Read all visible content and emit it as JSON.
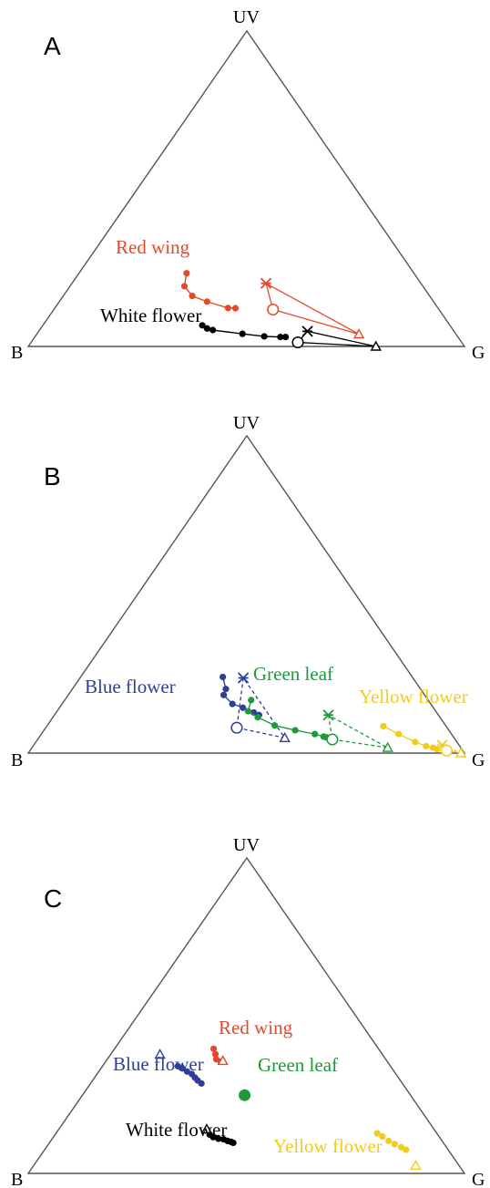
{
  "colors": {
    "black": "#000000",
    "red": "#e5492a",
    "blue": "#2f3f98",
    "green": "#1d9a3a",
    "yellow": "#f2cc1d",
    "triangle": "#555555"
  },
  "panels": [
    {
      "letter": "A",
      "vertices": {
        "uv": "UV",
        "b": "B",
        "g": "G"
      },
      "series": [
        {
          "label": "Red wing",
          "color_key": "red",
          "linestyle": "solid",
          "points": [
            [
              0.363,
              0.232
            ],
            [
              0.358,
              0.191
            ],
            [
              0.376,
              0.16
            ],
            [
              0.41,
              0.142
            ],
            [
              0.458,
              0.122
            ],
            [
              0.475,
              0.121
            ]
          ],
          "star": [
            0.545,
            0.2
          ],
          "circle": [
            0.561,
            0.117
          ],
          "triangle": [
            0.758,
            0.039
          ]
        },
        {
          "label": "White flower",
          "color_key": "black",
          "linestyle": "solid",
          "points": [
            [
              0.399,
              0.067
            ],
            [
              0.41,
              0.057
            ],
            [
              0.423,
              0.052
            ],
            [
              0.491,
              0.04
            ],
            [
              0.541,
              0.032
            ],
            [
              0.578,
              0.03
            ],
            [
              0.59,
              0.03
            ]
          ],
          "star": [
            0.64,
            0.048
          ],
          "circle": [
            0.618,
            0.013
          ],
          "triangle": [
            0.797,
            0.0
          ]
        }
      ]
    },
    {
      "letter": "B",
      "vertices": {
        "uv": "UV",
        "b": "B",
        "g": "G"
      },
      "series": [
        {
          "label": "Blue flower",
          "color_key": "blue",
          "linestyle": "dashed",
          "points": [
            [
              0.446,
              0.24
            ],
            [
              0.453,
              0.202
            ],
            [
              0.448,
              0.183
            ],
            [
              0.468,
              0.155
            ],
            [
              0.492,
              0.143
            ],
            [
              0.517,
              0.128
            ],
            [
              0.529,
              0.12
            ]
          ],
          "star": [
            0.493,
            0.237
          ],
          "circle": [
            0.478,
            0.08
          ],
          "triangle": [
            0.588,
            0.048
          ]
        },
        {
          "label": "Green leaf",
          "color_key": "green",
          "linestyle": "dashed",
          "points": [
            [
              0.511,
              0.167
            ],
            [
              0.504,
              0.132
            ],
            [
              0.526,
              0.113
            ],
            [
              0.565,
              0.087
            ],
            [
              0.612,
              0.072
            ],
            [
              0.657,
              0.06
            ],
            [
              0.677,
              0.052
            ],
            [
              0.683,
              0.05
            ]
          ],
          "star": [
            0.688,
            0.12
          ],
          "circle": [
            0.697,
            0.043
          ],
          "triangle": [
            0.824,
            0.017
          ]
        },
        {
          "label": "Yellow flower",
          "color_key": "yellow",
          "linestyle": "dashed",
          "points": [
            [
              0.814,
              0.085
            ],
            [
              0.849,
              0.06
            ],
            [
              0.887,
              0.035
            ],
            [
              0.912,
              0.022
            ],
            [
              0.928,
              0.017
            ],
            [
              0.937,
              0.012
            ]
          ],
          "star": [
            0.949,
            0.025
          ],
          "circle": [
            0.959,
            0.008
          ],
          "triangle": [
            0.992,
            0.0
          ]
        }
      ]
    },
    {
      "letter": "C",
      "vertices": {
        "uv": "UV",
        "b": "B",
        "g": "G"
      },
      "series": [
        {
          "label": "Red wing",
          "color_key": "red",
          "linestyle": "none",
          "points": [
            [
              0.425,
              0.395
            ],
            [
              0.429,
              0.378
            ],
            [
              0.431,
              0.362
            ],
            [
              0.441,
              0.354
            ]
          ],
          "triangle": [
            0.446,
            0.357
          ]
        },
        {
          "label": "Blue flower",
          "color_key": "blue",
          "linestyle": "none",
          "points": [
            [
              0.343,
              0.34
            ],
            [
              0.353,
              0.333
            ],
            [
              0.364,
              0.323
            ],
            [
              0.375,
              0.315
            ],
            [
              0.382,
              0.304
            ],
            [
              0.388,
              0.295
            ],
            [
              0.397,
              0.285
            ]
          ],
          "triangle": [
            0.302,
            0.377
          ]
        },
        {
          "label": "Green leaf",
          "color_key": "green",
          "linestyle": "none",
          "points": [
            [
              0.496,
              0.248
            ]
          ],
          "big_point": true
        },
        {
          "label": "White flower",
          "color_key": "black",
          "linestyle": "none",
          "points": [
            [
              0.416,
              0.123
            ],
            [
              0.424,
              0.115
            ],
            [
              0.436,
              0.11
            ],
            [
              0.448,
              0.108
            ],
            [
              0.457,
              0.103
            ],
            [
              0.465,
              0.1
            ],
            [
              0.47,
              0.097
            ]
          ],
          "triangle": [
            0.409,
            0.14
          ]
        },
        {
          "label": "Yellow flower",
          "color_key": "yellow",
          "linestyle": "none",
          "points": [
            [
              0.8,
              0.127
            ],
            [
              0.812,
              0.117
            ],
            [
              0.826,
              0.103
            ],
            [
              0.84,
              0.093
            ],
            [
              0.855,
              0.083
            ],
            [
              0.866,
              0.075
            ]
          ],
          "triangle": [
            0.888,
            0.025
          ]
        }
      ]
    }
  ]
}
